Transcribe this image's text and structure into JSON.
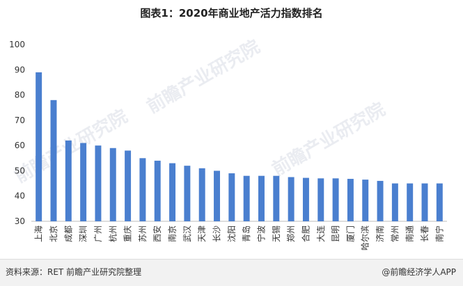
{
  "title": "图表1：2020年商业地产活力指数排名",
  "footer": {
    "source": "资料来源：RET 前瞻产业研究院整理",
    "brand": "@前瞻经济学人APP"
  },
  "watermark": "前瞻产业研究院",
  "colors": {
    "bar": "#4a7fcf",
    "axis": "#bbbbbb",
    "text": "#333333"
  },
  "chart_data": {
    "type": "bar",
    "title": "图表1：2020年商业地产活力指数排名",
    "xlabel": "",
    "ylabel": "",
    "ylim": [
      30,
      100
    ],
    "yticks": [
      30,
      40,
      50,
      60,
      70,
      80,
      90,
      100
    ],
    "grid": false,
    "categories": [
      "上海",
      "北京",
      "成都",
      "深圳",
      "广州",
      "杭州",
      "重庆",
      "苏州",
      "西安",
      "南京",
      "武汉",
      "天津",
      "长沙",
      "沈阳",
      "青岛",
      "宁波",
      "无锡",
      "郑州",
      "合肥",
      "大连",
      "昆明",
      "厦门",
      "哈尔滨",
      "济南",
      "常州",
      "南通",
      "长春",
      "南宁"
    ],
    "values": [
      89,
      78,
      62,
      61,
      60,
      59,
      58,
      55,
      54,
      53,
      52,
      51,
      50,
      49,
      48,
      48,
      48,
      47.5,
      47.2,
      47,
      47,
      46.8,
      46.5,
      46,
      45,
      45,
      45,
      45
    ]
  }
}
